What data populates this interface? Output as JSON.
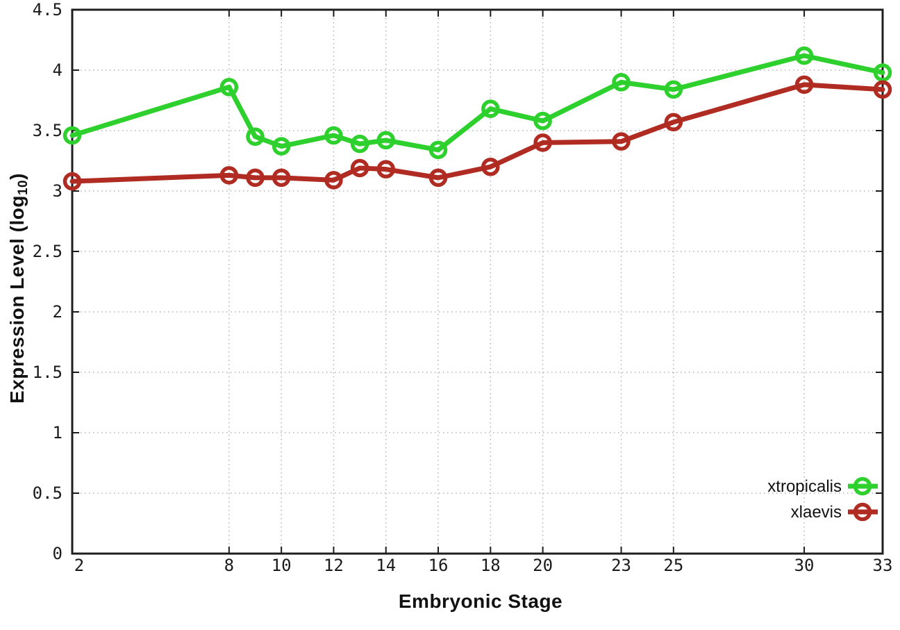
{
  "figure": {
    "background": "#ffffff",
    "frame_color": "#1f1f1f",
    "grid_color": "#b3b3b3",
    "tick_color": "#1a1a1a",
    "tick_label_color": "#1a1a1a"
  },
  "chart_data": {
    "type": "line",
    "title": "",
    "xlabel": "Embryonic Stage",
    "ylabel": "Expression Level (log10)",
    "ylabel_rich": {
      "main": "Expression Level (log",
      "sub": "10",
      "suffix": ")"
    },
    "xlim": [
      2,
      33
    ],
    "ylim": [
      0,
      4.5
    ],
    "xticks": [
      2,
      8,
      10,
      12,
      14,
      16,
      18,
      20,
      23,
      25,
      30,
      33
    ],
    "xtick_labels": [
      "2",
      "8",
      "10",
      "12",
      "14",
      "16",
      "18",
      "20",
      "23",
      "25",
      "30",
      "33"
    ],
    "yticks": [
      0,
      0.5,
      1,
      1.5,
      2,
      2.5,
      3,
      3.5,
      4,
      4.5
    ],
    "ytick_labels": [
      "0",
      "0.5",
      "1",
      "1.5",
      "2",
      "2.5",
      "3",
      "3.5",
      "4",
      "4.5"
    ],
    "grid": true,
    "grid_style": "dotted",
    "marker": "open-circle",
    "legend_position": "bottom-right",
    "x": [
      2,
      8,
      9,
      10,
      12,
      13,
      14,
      16,
      18,
      20,
      23,
      25,
      30,
      33
    ],
    "series": [
      {
        "name": "xtropicalis",
        "color": "#2dd02d",
        "values": [
          3.46,
          3.86,
          3.45,
          3.37,
          3.46,
          3.39,
          3.42,
          3.34,
          3.68,
          3.58,
          3.9,
          3.84,
          4.12,
          3.98
        ]
      },
      {
        "name": "xlaevis",
        "color": "#b02b22",
        "values": [
          3.08,
          3.13,
          3.11,
          3.11,
          3.09,
          3.19,
          3.18,
          3.11,
          3.2,
          3.4,
          3.41,
          3.57,
          3.88,
          3.84
        ]
      }
    ]
  }
}
